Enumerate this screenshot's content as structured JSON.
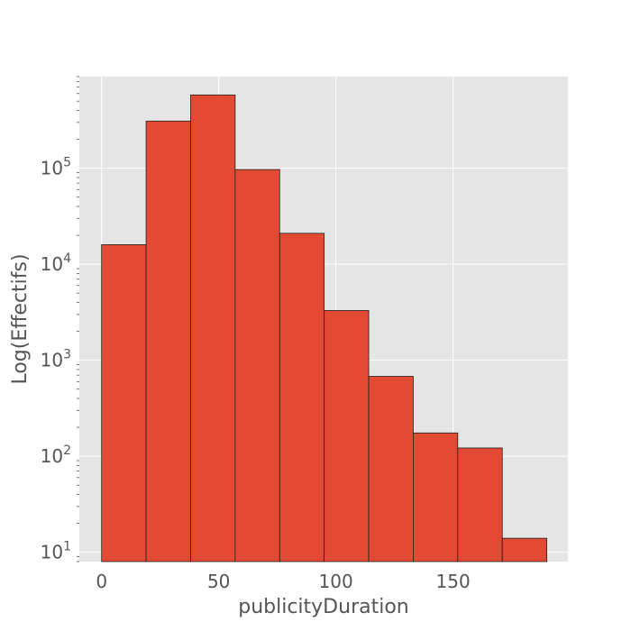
{
  "chart_data": {
    "type": "bar",
    "xlabel": "publicityDuration",
    "ylabel": "Log(Effectifs)",
    "yscale": "log",
    "grid": true,
    "xlim": [
      -9.5,
      199
    ],
    "ylim": [
      8,
      900000
    ],
    "bin_edges": [
      0,
      19,
      38,
      57,
      76,
      95,
      114,
      133,
      152,
      171,
      190
    ],
    "values": [
      16000,
      310000,
      580000,
      97000,
      21000,
      3300,
      680,
      175,
      122,
      14
    ],
    "x_ticks": [
      {
        "value": 0,
        "label": "0"
      },
      {
        "value": 50,
        "label": "50"
      },
      {
        "value": 100,
        "label": "100"
      },
      {
        "value": 150,
        "label": "150"
      }
    ],
    "y_ticks": [
      {
        "value": 10,
        "base": "10",
        "exp": "1"
      },
      {
        "value": 100,
        "base": "10",
        "exp": "2"
      },
      {
        "value": 1000,
        "base": "10",
        "exp": "3"
      },
      {
        "value": 10000,
        "base": "10",
        "exp": "4"
      },
      {
        "value": 100000,
        "base": "10",
        "exp": "5"
      }
    ],
    "colors": {
      "bar_fill": "#E24A33",
      "bar_edge": "#222222",
      "plot_background": "#E5E5E5",
      "grid": "#FFFFFF"
    }
  }
}
